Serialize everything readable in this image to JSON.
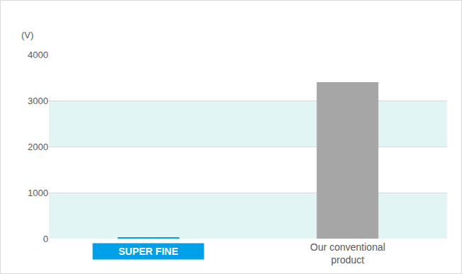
{
  "chart_data": {
    "type": "bar",
    "ylabel": "(V)",
    "categories": [
      "SUPER FINE",
      "Our conventional product"
    ],
    "values": [
      30,
      3400
    ],
    "colors": [
      "#00a0e9",
      "#a6a6a6"
    ],
    "ylim": [
      0,
      4000
    ],
    "yticks": [
      0,
      1000,
      2000,
      3000,
      4000
    ],
    "grid": true
  }
}
